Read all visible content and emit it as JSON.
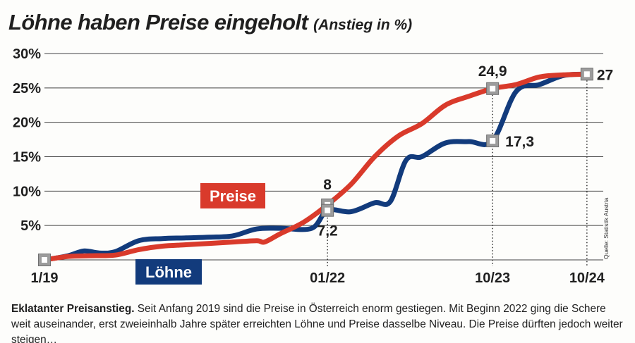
{
  "header": {
    "title": "Löhne haben Preise eingeholt",
    "subtitle": "(Anstieg in %)"
  },
  "caption": {
    "lead": "Eklatanter Preisanstieg.",
    "text": " Seit Anfang 2019 sind die Preise in Österreich enorm gestiegen. Mit Beginn 2022 ging die Schere weit auseinander, erst zweieinhalb Jahre später erreichten Löhne und Preise dasselbe Niveau. Die Preise dürften jedoch weiter steigen…"
  },
  "source_note": "Quelle: Statistik Austria",
  "colors": {
    "preise": "#d93a2b",
    "loehne": "#123b7c",
    "grid": "#444444",
    "marker_fill": "#9c9c9c",
    "text": "#1f1f1f"
  },
  "chart_data": {
    "type": "line",
    "title": "Löhne haben Preise eingeholt",
    "subtitle": "(Anstieg in %)",
    "xlabel": "",
    "ylabel": "",
    "x_range": [
      "2019-01",
      "2024-11"
    ],
    "ylim": [
      0,
      30
    ],
    "y_ticks": [
      5,
      10,
      15,
      20,
      25,
      30
    ],
    "y_tick_labels": [
      "5%",
      "10%",
      "15%",
      "20%",
      "25%",
      "30%"
    ],
    "x_tick_labels": [
      {
        "x": "2019-01",
        "label": "1/19"
      },
      {
        "x": "2022-01",
        "label": "01/22"
      },
      {
        "x": "2023-10",
        "label": "10/23"
      },
      {
        "x": "2024-10",
        "label": "10/24"
      }
    ],
    "grid": true,
    "legend": "inline labels",
    "series": [
      {
        "name": "Preise",
        "color": "#d93a2b",
        "points": [
          [
            "2019-01",
            0
          ],
          [
            "2019-04",
            0.5
          ],
          [
            "2019-07",
            0.6
          ],
          [
            "2019-10",
            0.7
          ],
          [
            "2020-01",
            1.5
          ],
          [
            "2020-04",
            2.0
          ],
          [
            "2020-07",
            2.2
          ],
          [
            "2020-10",
            2.4
          ],
          [
            "2021-01",
            2.6
          ],
          [
            "2021-04",
            2.8
          ],
          [
            "2021-05",
            2.6
          ],
          [
            "2021-07",
            3.8
          ],
          [
            "2021-10",
            5.5
          ],
          [
            "2022-01",
            8.0
          ],
          [
            "2022-04",
            11.0
          ],
          [
            "2022-07",
            15.0
          ],
          [
            "2022-10",
            18.0
          ],
          [
            "2023-01",
            19.8
          ],
          [
            "2023-04",
            22.5
          ],
          [
            "2023-07",
            23.8
          ],
          [
            "2023-10",
            24.9
          ],
          [
            "2024-01",
            25.5
          ],
          [
            "2024-04",
            26.6
          ],
          [
            "2024-07",
            26.9
          ],
          [
            "2024-10",
            27.0
          ]
        ]
      },
      {
        "name": "Löhne",
        "color": "#123b7c",
        "points": [
          [
            "2019-01",
            0
          ],
          [
            "2019-04",
            0.6
          ],
          [
            "2019-06",
            1.3
          ],
          [
            "2019-08",
            1.0
          ],
          [
            "2019-10",
            1.2
          ],
          [
            "2020-01",
            2.8
          ],
          [
            "2020-04",
            3.1
          ],
          [
            "2020-07",
            3.2
          ],
          [
            "2020-10",
            3.3
          ],
          [
            "2021-01",
            3.5
          ],
          [
            "2021-04",
            4.5
          ],
          [
            "2021-07",
            4.6
          ],
          [
            "2021-11",
            4.6
          ],
          [
            "2022-01",
            7.2
          ],
          [
            "2022-04",
            7.0
          ],
          [
            "2022-07",
            8.3
          ],
          [
            "2022-09",
            8.5
          ],
          [
            "2022-11",
            14.5
          ],
          [
            "2023-01",
            15.0
          ],
          [
            "2023-04",
            17.0
          ],
          [
            "2023-07",
            17.2
          ],
          [
            "2023-10",
            17.3
          ],
          [
            "2024-01",
            24.5
          ],
          [
            "2024-04",
            25.5
          ],
          [
            "2024-07",
            26.8
          ],
          [
            "2024-10",
            27.0
          ]
        ]
      }
    ],
    "annotations": [
      {
        "x": "2019-01",
        "y": 0,
        "label": ""
      },
      {
        "x": "2022-01",
        "y": 8.0,
        "label": "8"
      },
      {
        "x": "2022-01",
        "y": 7.2,
        "label": "7,2"
      },
      {
        "x": "2023-10",
        "y": 24.9,
        "label": "24,9"
      },
      {
        "x": "2023-10",
        "y": 17.3,
        "label": "17,3"
      },
      {
        "x": "2024-10",
        "y": 27.0,
        "label": "27"
      }
    ]
  }
}
